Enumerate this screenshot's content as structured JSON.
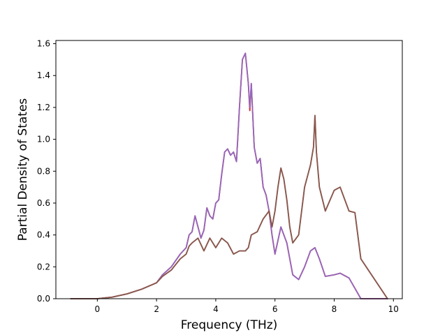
{
  "chart_data": {
    "type": "line",
    "title": "",
    "xlabel": "Frequency (THz)",
    "ylabel": "Partial Density of States",
    "xlim": [
      -1.4,
      10.3
    ],
    "ylim": [
      0.0,
      1.62
    ],
    "xticks": [
      0,
      2,
      4,
      6,
      8,
      10
    ],
    "yticks": [
      0.0,
      0.2,
      0.4,
      0.6,
      0.8,
      1.0,
      1.2,
      1.4,
      1.6
    ],
    "xtick_labels": [
      "0",
      "2",
      "4",
      "6",
      "8",
      "10"
    ],
    "ytick_labels": [
      "0.0",
      "0.2",
      "0.4",
      "0.6",
      "0.8",
      "1.0",
      "1.2",
      "1.4",
      "1.6"
    ],
    "grid": false,
    "legend": false,
    "series": [
      {
        "color": "#d62728",
        "x": [
          -0.9,
          0.0,
          0.5,
          1.0,
          1.5,
          2.0,
          2.2,
          2.5,
          2.8,
          3.0,
          3.1,
          3.2,
          3.3,
          3.4,
          3.5,
          3.6,
          3.7,
          3.8,
          3.9,
          4.0,
          4.1,
          4.2,
          4.3,
          4.4,
          4.5,
          4.6,
          4.7,
          4.8,
          4.9,
          5.0,
          5.1,
          5.15,
          5.2,
          5.3,
          5.4,
          5.5,
          5.6,
          5.7,
          5.8,
          5.9,
          6.0,
          6.2,
          6.4,
          6.6,
          6.8,
          7.0,
          7.2,
          7.35,
          7.5,
          7.7,
          8.0,
          8.2,
          8.5,
          8.9,
          9.8
        ],
        "y": [
          0.0,
          0.0,
          0.01,
          0.03,
          0.06,
          0.1,
          0.15,
          0.2,
          0.28,
          0.32,
          0.4,
          0.42,
          0.52,
          0.45,
          0.38,
          0.43,
          0.57,
          0.52,
          0.5,
          0.6,
          0.62,
          0.78,
          0.92,
          0.94,
          0.9,
          0.92,
          0.86,
          1.2,
          1.5,
          1.54,
          1.35,
          1.18,
          1.35,
          0.95,
          0.85,
          0.88,
          0.7,
          0.65,
          0.55,
          0.4,
          0.28,
          0.45,
          0.35,
          0.15,
          0.12,
          0.2,
          0.3,
          0.32,
          0.25,
          0.14,
          0.15,
          0.16,
          0.13,
          0.0,
          0.0
        ]
      },
      {
        "color": "#9467bd",
        "x": [
          -0.9,
          0.0,
          0.5,
          1.0,
          1.5,
          2.0,
          2.2,
          2.5,
          2.8,
          3.0,
          3.1,
          3.2,
          3.3,
          3.4,
          3.5,
          3.6,
          3.7,
          3.8,
          3.9,
          4.0,
          4.1,
          4.2,
          4.3,
          4.4,
          4.5,
          4.6,
          4.7,
          4.8,
          4.9,
          5.0,
          5.1,
          5.15,
          5.2,
          5.3,
          5.4,
          5.5,
          5.6,
          5.7,
          5.8,
          5.9,
          6.0,
          6.2,
          6.4,
          6.6,
          6.8,
          7.0,
          7.2,
          7.35,
          7.5,
          7.7,
          8.0,
          8.2,
          8.5,
          8.9,
          9.8
        ],
        "y": [
          0.0,
          0.0,
          0.01,
          0.03,
          0.06,
          0.1,
          0.15,
          0.2,
          0.28,
          0.32,
          0.4,
          0.42,
          0.52,
          0.45,
          0.38,
          0.43,
          0.57,
          0.52,
          0.5,
          0.6,
          0.62,
          0.78,
          0.92,
          0.94,
          0.9,
          0.92,
          0.86,
          1.2,
          1.5,
          1.54,
          1.35,
          1.2,
          1.35,
          0.95,
          0.85,
          0.88,
          0.7,
          0.65,
          0.55,
          0.4,
          0.28,
          0.45,
          0.35,
          0.15,
          0.12,
          0.2,
          0.3,
          0.32,
          0.25,
          0.14,
          0.15,
          0.16,
          0.13,
          0.0,
          0.0
        ]
      },
      {
        "color": "#7f7f7f",
        "x": [
          -0.9,
          0.0,
          0.5,
          1.0,
          1.5,
          2.0,
          2.2,
          2.5,
          2.8,
          3.0,
          3.1,
          3.2,
          3.4,
          3.6,
          3.8,
          4.0,
          4.2,
          4.4,
          4.6,
          4.8,
          5.0,
          5.1,
          5.2,
          5.4,
          5.6,
          5.8,
          5.9,
          6.0,
          6.1,
          6.2,
          6.3,
          6.4,
          6.5,
          6.6,
          6.8,
          7.0,
          7.2,
          7.3,
          7.35,
          7.4,
          7.5,
          7.7,
          8.0,
          8.2,
          8.5,
          8.7,
          8.9,
          9.8
        ],
        "y": [
          0.0,
          0.0,
          0.01,
          0.03,
          0.06,
          0.1,
          0.14,
          0.18,
          0.25,
          0.28,
          0.33,
          0.35,
          0.38,
          0.3,
          0.38,
          0.32,
          0.38,
          0.35,
          0.28,
          0.3,
          0.3,
          0.32,
          0.4,
          0.42,
          0.5,
          0.55,
          0.45,
          0.55,
          0.7,
          0.82,
          0.75,
          0.62,
          0.45,
          0.35,
          0.4,
          0.7,
          0.84,
          0.95,
          1.15,
          0.92,
          0.7,
          0.55,
          0.68,
          0.7,
          0.55,
          0.54,
          0.25,
          0.0
        ]
      },
      {
        "color": "#8c564b",
        "x": [
          -0.9,
          0.0,
          0.5,
          1.0,
          1.5,
          2.0,
          2.2,
          2.5,
          2.8,
          3.0,
          3.1,
          3.2,
          3.4,
          3.6,
          3.8,
          4.0,
          4.2,
          4.4,
          4.6,
          4.8,
          5.0,
          5.1,
          5.2,
          5.4,
          5.6,
          5.8,
          5.9,
          6.0,
          6.1,
          6.2,
          6.3,
          6.4,
          6.5,
          6.6,
          6.8,
          7.0,
          7.2,
          7.3,
          7.35,
          7.4,
          7.5,
          7.7,
          8.0,
          8.2,
          8.5,
          8.7,
          8.9,
          9.8
        ],
        "y": [
          0.0,
          0.0,
          0.01,
          0.03,
          0.06,
          0.1,
          0.14,
          0.18,
          0.25,
          0.28,
          0.33,
          0.35,
          0.38,
          0.3,
          0.38,
          0.32,
          0.38,
          0.35,
          0.28,
          0.3,
          0.3,
          0.32,
          0.4,
          0.42,
          0.5,
          0.55,
          0.45,
          0.55,
          0.7,
          0.82,
          0.75,
          0.62,
          0.45,
          0.35,
          0.4,
          0.7,
          0.84,
          0.95,
          1.15,
          0.92,
          0.7,
          0.55,
          0.68,
          0.7,
          0.55,
          0.54,
          0.25,
          0.0
        ]
      }
    ]
  }
}
